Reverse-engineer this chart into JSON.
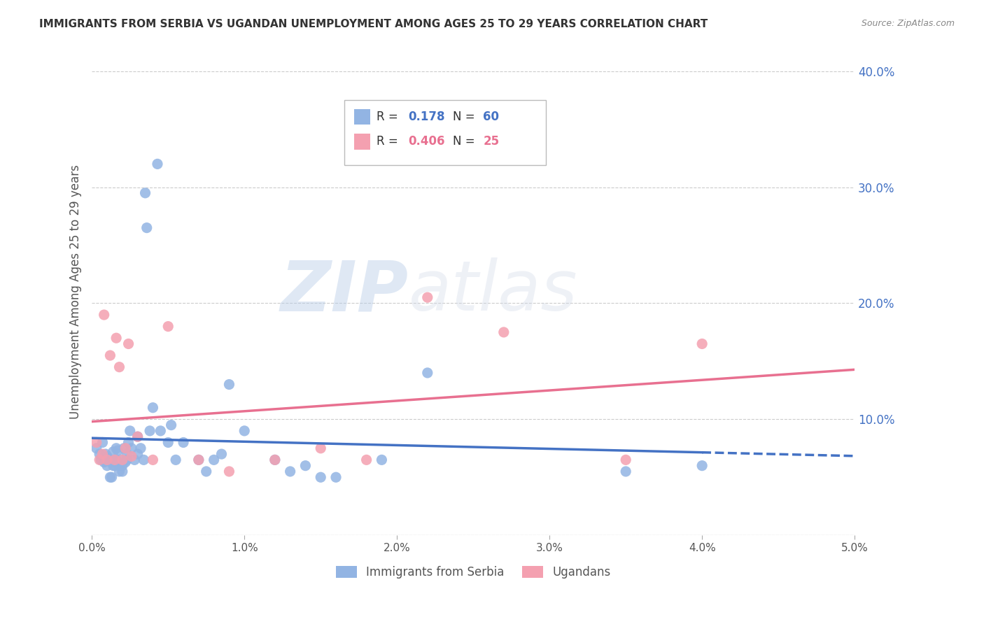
{
  "title": "IMMIGRANTS FROM SERBIA VS UGANDAN UNEMPLOYMENT AMONG AGES 25 TO 29 YEARS CORRELATION CHART",
  "source": "Source: ZipAtlas.com",
  "ylabel": "Unemployment Among Ages 25 to 29 years",
  "legend_label1": "Immigrants from Serbia",
  "legend_label2": "Ugandans",
  "R1": 0.178,
  "N1": 60,
  "R2": 0.406,
  "N2": 25,
  "xlim": [
    0.0,
    0.05
  ],
  "ylim": [
    0.0,
    0.42
  ],
  "xticks": [
    0.0,
    0.01,
    0.02,
    0.03,
    0.04,
    0.05
  ],
  "xticklabels": [
    "0.0%",
    "1.0%",
    "2.0%",
    "3.0%",
    "4.0%",
    "5.0%"
  ],
  "yticks_right": [
    0.0,
    0.1,
    0.2,
    0.3,
    0.4
  ],
  "ytick_labels_right": [
    "",
    "10.0%",
    "20.0%",
    "30.0%",
    "40.0%"
  ],
  "color_blue": "#92b4e3",
  "color_pink": "#f4a0b0",
  "color_blue_line": "#4472c4",
  "color_pink_line": "#e87090",
  "color_axis_right": "#4472c4",
  "color_title": "#222222",
  "color_source": "#888888",
  "watermark": "ZIPatlas",
  "background_color": "#ffffff",
  "grid_color": "#cccccc",
  "serbia_x": [
    0.0003,
    0.0005,
    0.0006,
    0.0007,
    0.0008,
    0.0009,
    0.001,
    0.001,
    0.0012,
    0.0013,
    0.0013,
    0.0014,
    0.0014,
    0.0015,
    0.0015,
    0.0016,
    0.0016,
    0.0017,
    0.0018,
    0.0018,
    0.0019,
    0.002,
    0.002,
    0.0021,
    0.0022,
    0.0023,
    0.0023,
    0.0024,
    0.0025,
    0.0026,
    0.0028,
    0.003,
    0.003,
    0.0032,
    0.0034,
    0.0035,
    0.0036,
    0.0038,
    0.004,
    0.0043,
    0.0045,
    0.005,
    0.0052,
    0.0055,
    0.006,
    0.007,
    0.0075,
    0.008,
    0.0085,
    0.009,
    0.01,
    0.012,
    0.013,
    0.014,
    0.015,
    0.016,
    0.019,
    0.022,
    0.035,
    0.04
  ],
  "serbia_y": [
    0.075,
    0.07,
    0.065,
    0.08,
    0.063,
    0.07,
    0.068,
    0.06,
    0.05,
    0.063,
    0.05,
    0.06,
    0.072,
    0.065,
    0.06,
    0.065,
    0.075,
    0.073,
    0.055,
    0.06,
    0.065,
    0.06,
    0.055,
    0.075,
    0.063,
    0.07,
    0.065,
    0.08,
    0.09,
    0.075,
    0.065,
    0.085,
    0.07,
    0.075,
    0.065,
    0.295,
    0.265,
    0.09,
    0.11,
    0.32,
    0.09,
    0.08,
    0.095,
    0.065,
    0.08,
    0.065,
    0.055,
    0.065,
    0.07,
    0.13,
    0.09,
    0.065,
    0.055,
    0.06,
    0.05,
    0.05,
    0.065,
    0.14,
    0.055,
    0.06
  ],
  "ugandan_x": [
    0.0003,
    0.0005,
    0.0007,
    0.0008,
    0.001,
    0.0012,
    0.0015,
    0.0016,
    0.0018,
    0.002,
    0.0022,
    0.0024,
    0.0026,
    0.003,
    0.004,
    0.005,
    0.007,
    0.009,
    0.012,
    0.015,
    0.018,
    0.022,
    0.027,
    0.035,
    0.04
  ],
  "ugandan_y": [
    0.08,
    0.065,
    0.07,
    0.19,
    0.065,
    0.155,
    0.065,
    0.17,
    0.145,
    0.065,
    0.075,
    0.165,
    0.068,
    0.085,
    0.065,
    0.18,
    0.065,
    0.055,
    0.065,
    0.075,
    0.065,
    0.205,
    0.175,
    0.065,
    0.165
  ]
}
